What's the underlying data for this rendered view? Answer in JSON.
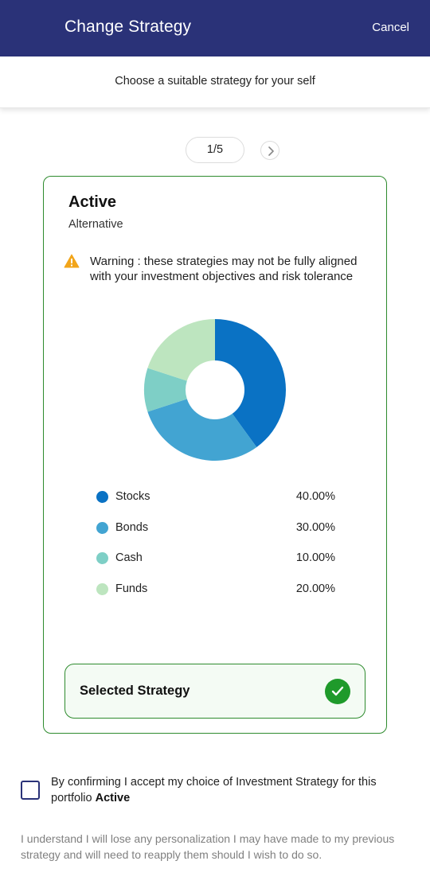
{
  "header": {
    "title": "Change Strategy",
    "cancel_label": "Cancel"
  },
  "subheader": {
    "text": "Choose a suitable strategy for your self"
  },
  "pager": {
    "label": "1/5"
  },
  "strategy": {
    "name": "Active",
    "type": "Alternative",
    "warning": "Warning : these strategies may not be fully aligned with your investment objectives and risk tolerance",
    "selected_label": "Selected Strategy"
  },
  "chart_data": {
    "type": "pie",
    "categories": [
      "Stocks",
      "Bonds",
      "Cash",
      "Funds"
    ],
    "values": [
      40,
      30,
      10,
      20
    ],
    "value_labels": [
      "40.00%",
      "30.00%",
      "10.00%",
      "20.00%"
    ],
    "colors": [
      "#0a72c4",
      "#42a4d2",
      "#7ecfc6",
      "#bde5bf"
    ],
    "donut": true,
    "legend": "below"
  },
  "confirm": {
    "text": "By confirming I accept my choice of Investment Strategy for this portfolio",
    "strategy_name": "Active"
  },
  "disclaimer": "I understand I will lose any personalization I may have made to my previous strategy and will need to reapply them should I wish to do so."
}
